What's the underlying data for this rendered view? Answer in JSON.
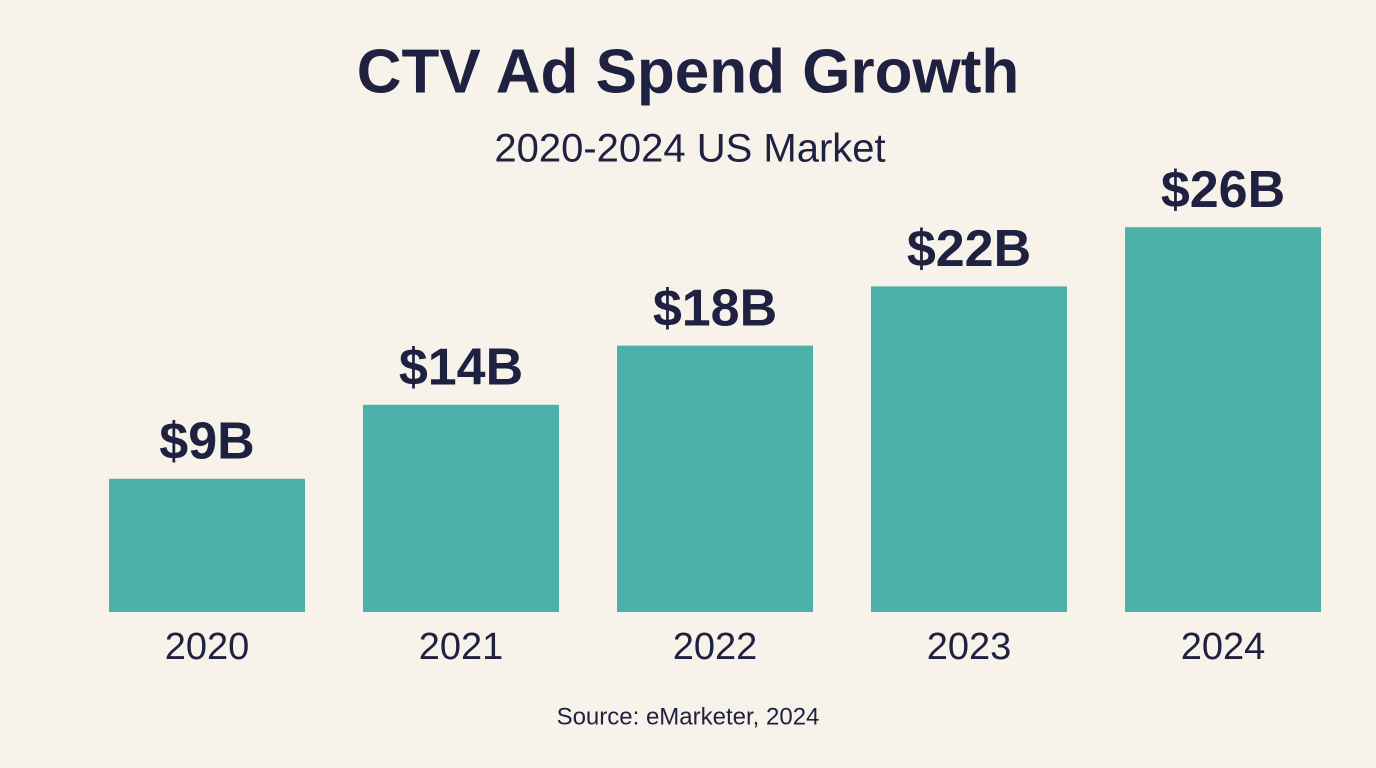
{
  "chart_data": {
    "type": "bar",
    "title": "CTV Ad Spend Growth",
    "subtitle": "2020-2024 US Market",
    "categories": [
      "2020",
      "2021",
      "2022",
      "2023",
      "2024"
    ],
    "values": [
      9,
      14,
      18,
      22,
      26
    ],
    "value_labels": [
      "$9B",
      "$14B",
      "$18B",
      "$22B",
      "$26B"
    ],
    "color": "#4cb1a9",
    "source": "Source: eMarketer, 2024"
  }
}
